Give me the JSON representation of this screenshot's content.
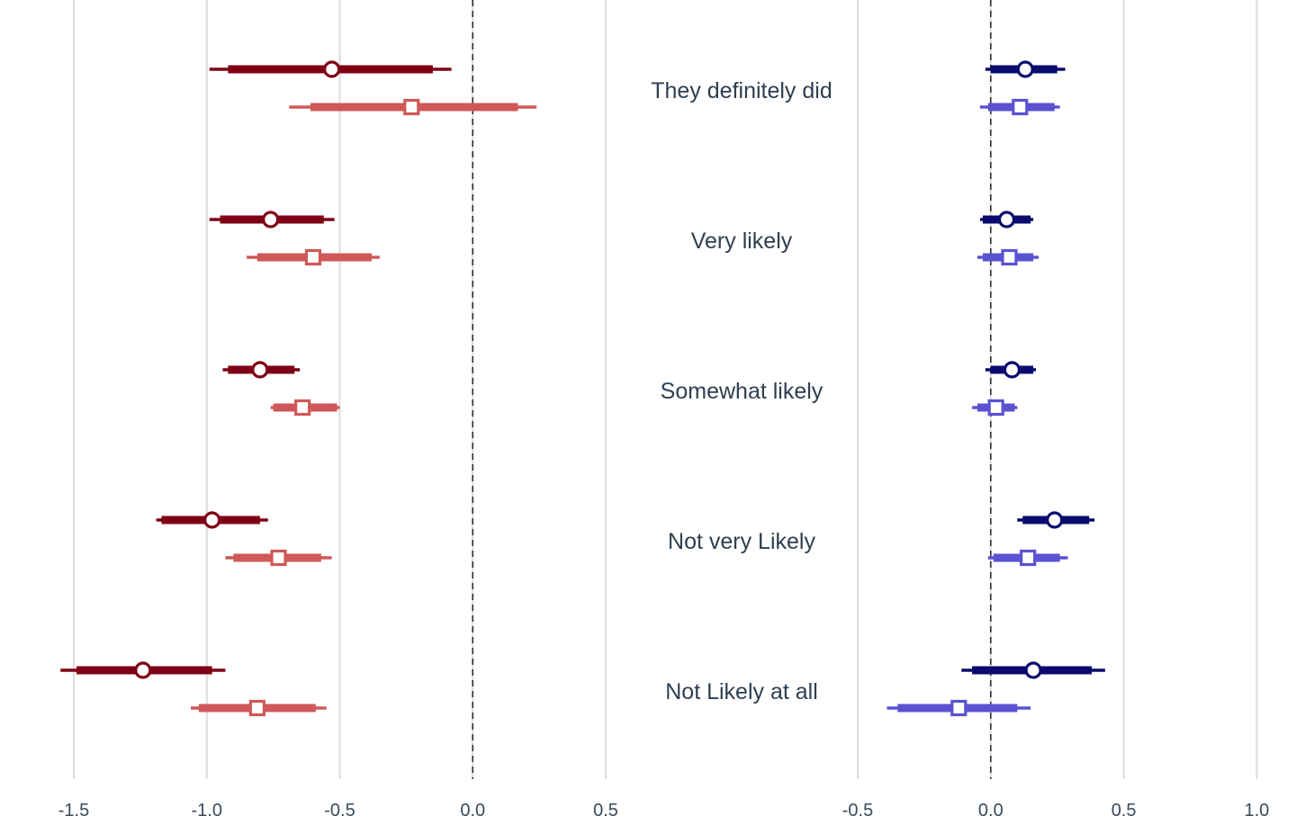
{
  "chart_data": [
    {
      "type": "forest",
      "xlim": [
        -1.5,
        0.5
      ],
      "xticks": [
        "-1.5",
        "-1.0",
        "-0.5",
        "0.0",
        "0.5"
      ],
      "reference_line": 0.0,
      "categories": [
        "They definitely did",
        "Very likely",
        "Somewhat likely",
        "Not very Likely",
        "Not Likely at all"
      ],
      "series": [
        {
          "marker": "circle",
          "color": "#7f0015",
          "estimates": [
            -0.53,
            -0.76,
            -0.8,
            -0.98,
            -1.24
          ],
          "ci_inner": [
            [
              -0.92,
              -0.15
            ],
            [
              -0.95,
              -0.56
            ],
            [
              -0.92,
              -0.67
            ],
            [
              -1.17,
              -0.8
            ],
            [
              -1.49,
              -0.98
            ]
          ],
          "ci_outer": [
            [
              -0.99,
              -0.08
            ],
            [
              -0.99,
              -0.52
            ],
            [
              -0.94,
              -0.65
            ],
            [
              -1.19,
              -0.77
            ],
            [
              -1.55,
              -0.93
            ]
          ]
        },
        {
          "marker": "square",
          "color": "#d05858",
          "estimates": [
            -0.23,
            -0.6,
            -0.64,
            -0.73,
            -0.81
          ],
          "ci_inner": [
            [
              -0.61,
              0.17
            ],
            [
              -0.81,
              -0.38
            ],
            [
              -0.75,
              -0.51
            ],
            [
              -0.9,
              -0.57
            ],
            [
              -1.03,
              -0.59
            ]
          ],
          "ci_outer": [
            [
              -0.69,
              0.24
            ],
            [
              -0.85,
              -0.35
            ],
            [
              -0.76,
              -0.5
            ],
            [
              -0.93,
              -0.53
            ],
            [
              -1.06,
              -0.55
            ]
          ]
        }
      ]
    },
    {
      "type": "forest",
      "xlim": [
        -0.5,
        1.0
      ],
      "xticks": [
        "-0.5",
        "0.0",
        "0.5",
        "1.0"
      ],
      "reference_line": 0.0,
      "categories": [
        "They definitely did",
        "Very likely",
        "Somewhat likely",
        "Not very Likely",
        "Not Likely at all"
      ],
      "series": [
        {
          "marker": "circle",
          "color": "#0b0b6e",
          "estimates": [
            0.13,
            0.06,
            0.08,
            0.24,
            0.16
          ],
          "ci_inner": [
            [
              0.0,
              0.25
            ],
            [
              -0.03,
              0.15
            ],
            [
              0.0,
              0.16
            ],
            [
              0.12,
              0.37
            ],
            [
              -0.07,
              0.38
            ]
          ],
          "ci_outer": [
            [
              -0.02,
              0.28
            ],
            [
              -0.04,
              0.16
            ],
            [
              -0.02,
              0.17
            ],
            [
              0.1,
              0.39
            ],
            [
              -0.11,
              0.43
            ]
          ]
        },
        {
          "marker": "square",
          "color": "#5b52d2",
          "estimates": [
            0.11,
            0.07,
            0.02,
            0.14,
            -0.12
          ],
          "ci_inner": [
            [
              -0.01,
              0.24
            ],
            [
              -0.03,
              0.16
            ],
            [
              -0.05,
              0.09
            ],
            [
              0.01,
              0.26
            ],
            [
              -0.35,
              0.1
            ]
          ],
          "ci_outer": [
            [
              -0.04,
              0.26
            ],
            [
              -0.05,
              0.18
            ],
            [
              -0.07,
              0.1
            ],
            [
              -0.01,
              0.29
            ],
            [
              -0.39,
              0.15
            ]
          ]
        }
      ]
    }
  ]
}
